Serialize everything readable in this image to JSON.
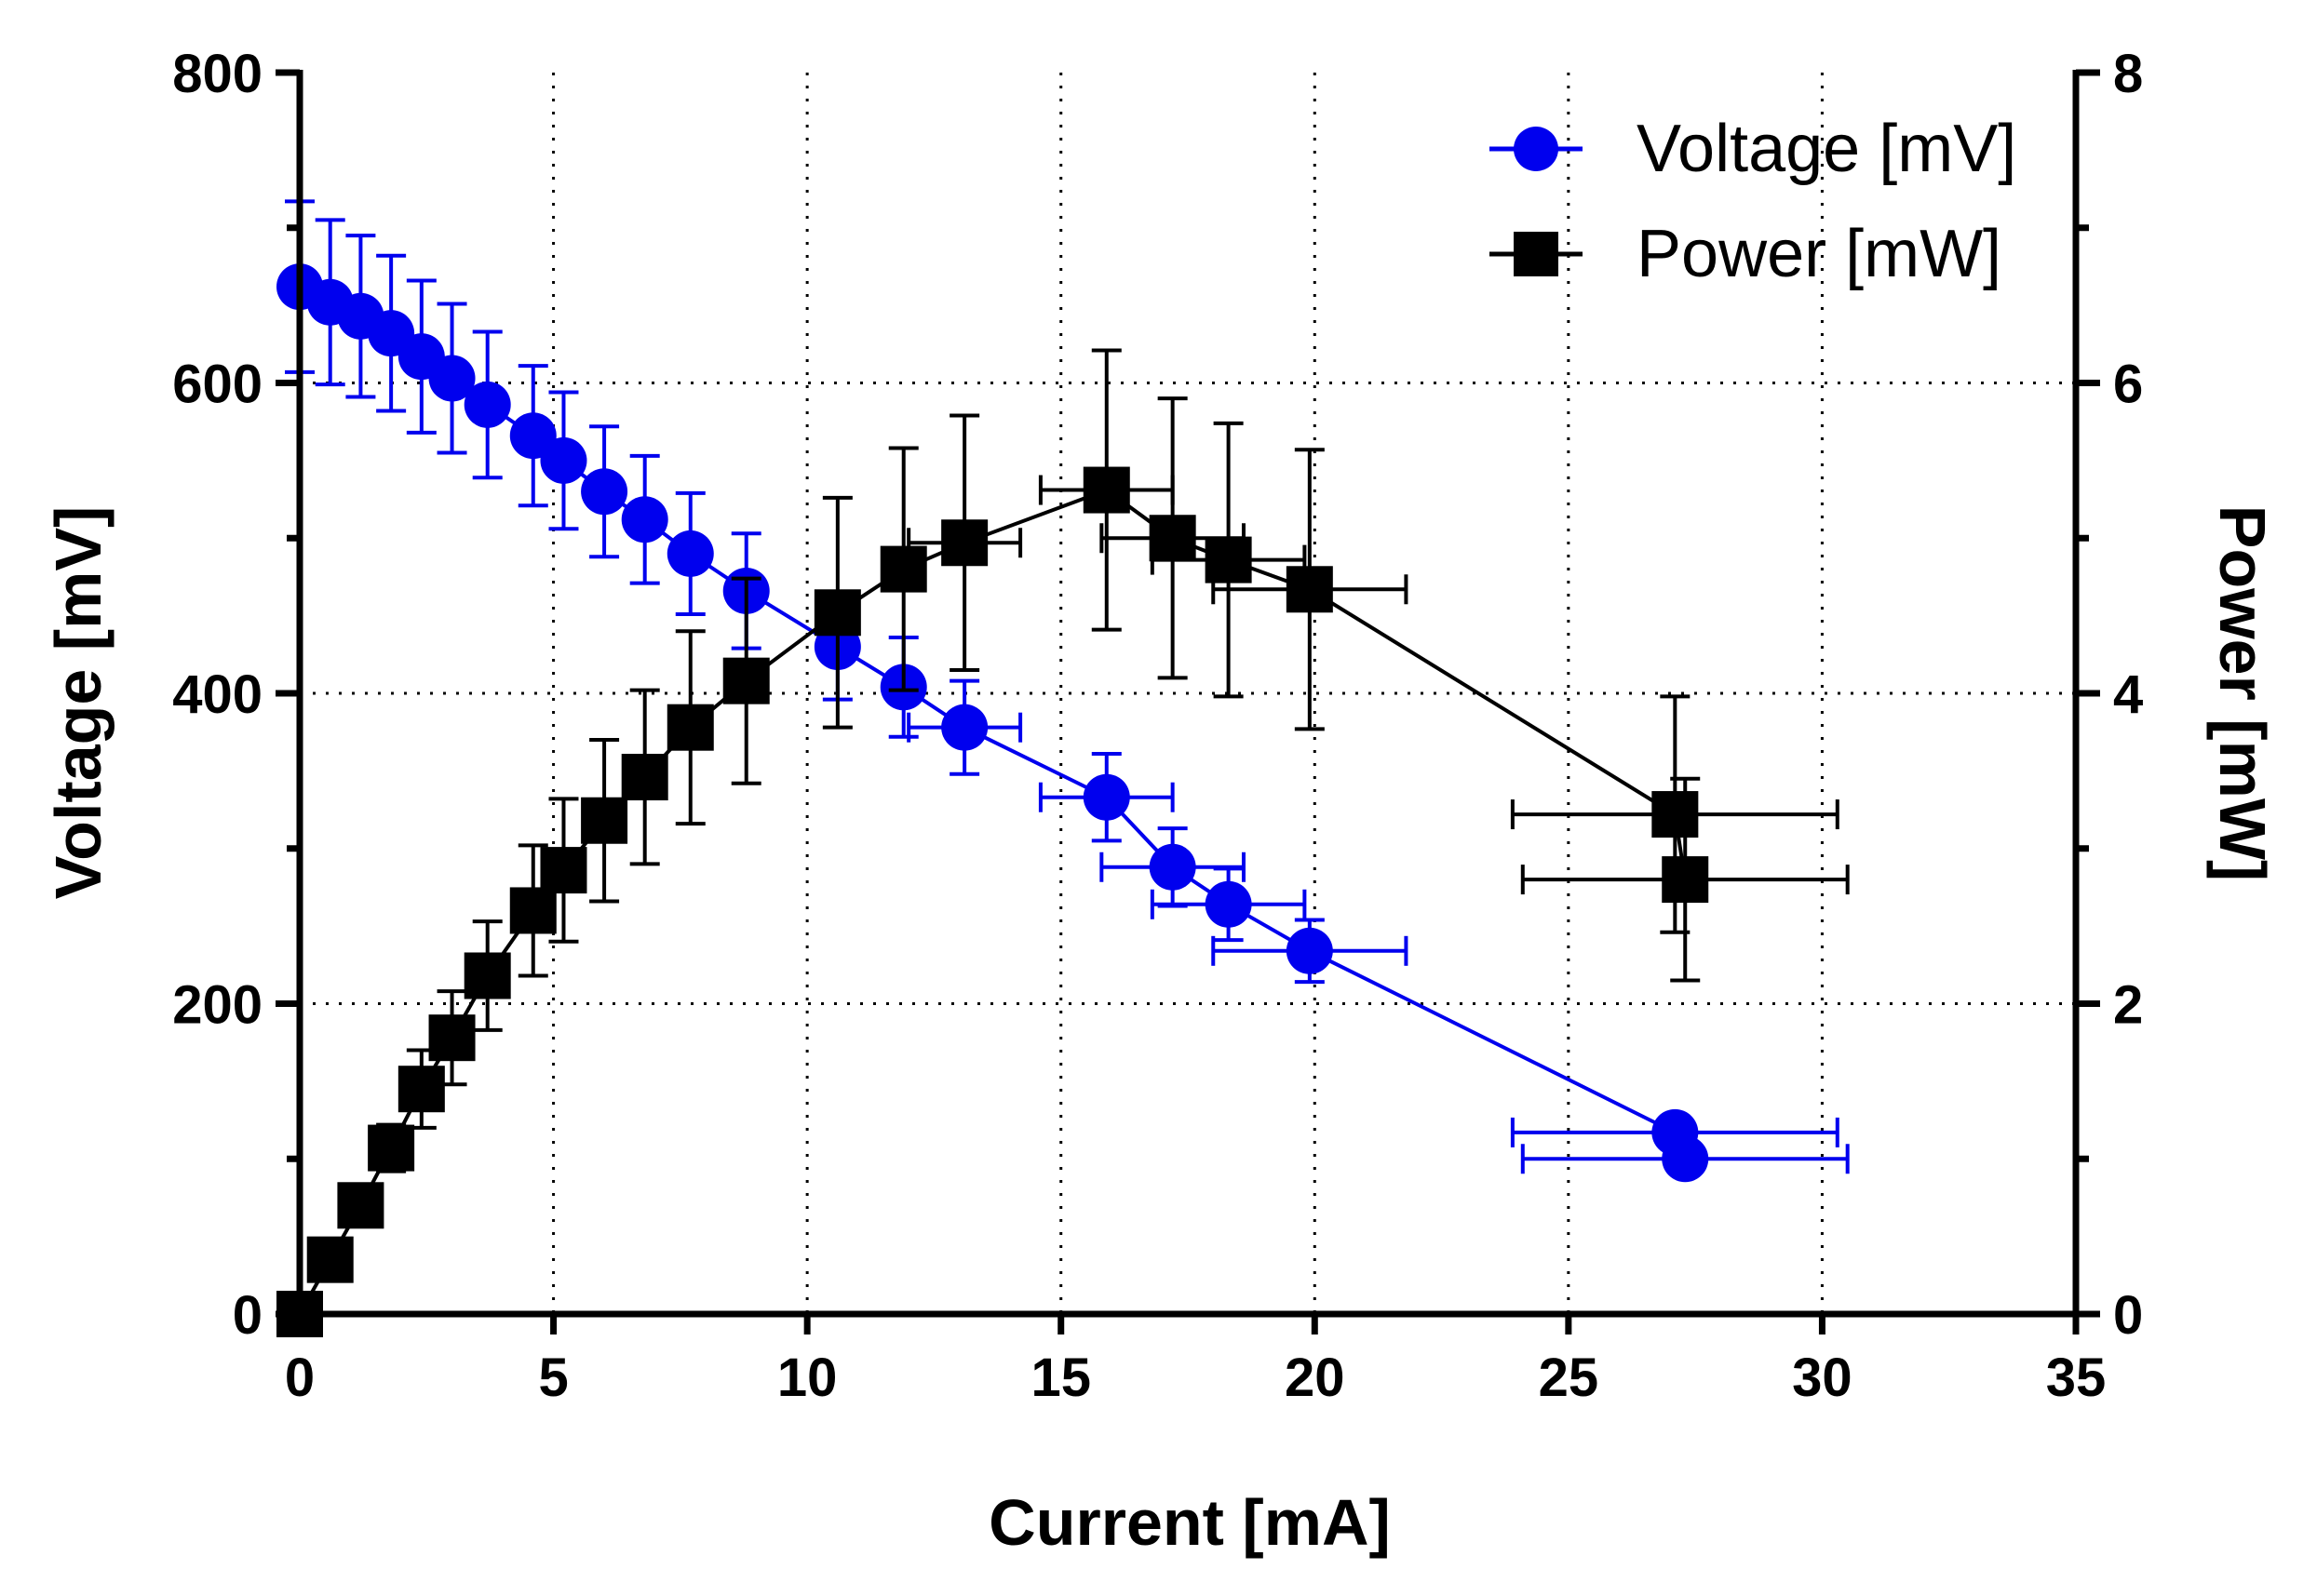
{
  "chart_data": {
    "type": "scatter",
    "title": "",
    "xlabel": "Current [mA]",
    "ylabel": "Voltage [mV]",
    "y2label": "Power [mW]",
    "xlim": [
      0,
      35
    ],
    "ylim": [
      0,
      800
    ],
    "y2lim": [
      0,
      8
    ],
    "x_ticks": [
      0,
      5,
      10,
      15,
      20,
      25,
      30,
      35
    ],
    "y_ticks": [
      0,
      200,
      400,
      600,
      800
    ],
    "y2_ticks": [
      0,
      2,
      4,
      6,
      8
    ],
    "grid": "dotted",
    "legend_position": "top-right",
    "series": [
      {
        "name": "Voltage [mV]",
        "axis": "left",
        "color": "#0000ee",
        "marker": "circle",
        "points": [
          {
            "x": 0.0,
            "y": 662,
            "yerr": 55,
            "xerr": 0
          },
          {
            "x": 0.6,
            "y": 652,
            "yerr": 53,
            "xerr": 0
          },
          {
            "x": 1.2,
            "y": 643,
            "yerr": 52,
            "xerr": 0
          },
          {
            "x": 1.8,
            "y": 632,
            "yerr": 50,
            "xerr": 0
          },
          {
            "x": 2.4,
            "y": 617,
            "yerr": 49,
            "xerr": 0
          },
          {
            "x": 3.0,
            "y": 603,
            "yerr": 48,
            "xerr": 0
          },
          {
            "x": 3.7,
            "y": 586,
            "yerr": 47,
            "xerr": 0
          },
          {
            "x": 4.6,
            "y": 566,
            "yerr": 45,
            "xerr": 0
          },
          {
            "x": 5.2,
            "y": 550,
            "yerr": 44,
            "xerr": 0
          },
          {
            "x": 6.0,
            "y": 530,
            "yerr": 42,
            "xerr": 0
          },
          {
            "x": 6.8,
            "y": 512,
            "yerr": 41,
            "xerr": 0
          },
          {
            "x": 7.7,
            "y": 490,
            "yerr": 39,
            "xerr": 0
          },
          {
            "x": 8.8,
            "y": 466,
            "yerr": 37,
            "xerr": 0
          },
          {
            "x": 10.6,
            "y": 430,
            "yerr": 34,
            "xerr": 0
          },
          {
            "x": 11.9,
            "y": 404,
            "yerr": 32,
            "xerr": 0
          },
          {
            "x": 13.1,
            "y": 378,
            "yerr": 30,
            "xerr": 1.1
          },
          {
            "x": 15.9,
            "y": 333,
            "yerr": 28,
            "xerr": 1.3
          },
          {
            "x": 17.2,
            "y": 288,
            "yerr": 25,
            "xerr": 1.4
          },
          {
            "x": 18.3,
            "y": 264,
            "yerr": 23,
            "xerr": 1.5
          },
          {
            "x": 19.9,
            "y": 234,
            "yerr": 20,
            "xerr": 1.9
          },
          {
            "x": 27.1,
            "y": 117,
            "yerr": 10,
            "xerr": 3.2
          },
          {
            "x": 27.3,
            "y": 100,
            "yerr": 8,
            "xerr": 3.2
          }
        ]
      },
      {
        "name": "Power [mW]",
        "axis": "right",
        "color": "#000000",
        "marker": "square",
        "points": [
          {
            "x": 0.0,
            "y": 0.0,
            "yerr": 0.0,
            "xerr": 0
          },
          {
            "x": 0.6,
            "y": 0.35,
            "yerr": 0.0,
            "xerr": 0
          },
          {
            "x": 1.2,
            "y": 0.7,
            "yerr": 0.0,
            "xerr": 0
          },
          {
            "x": 1.8,
            "y": 1.07,
            "yerr": 0.15,
            "xerr": 0
          },
          {
            "x": 2.4,
            "y": 1.45,
            "yerr": 0.25,
            "xerr": 0
          },
          {
            "x": 3.0,
            "y": 1.78,
            "yerr": 0.3,
            "xerr": 0
          },
          {
            "x": 3.7,
            "y": 2.18,
            "yerr": 0.35,
            "xerr": 0
          },
          {
            "x": 4.6,
            "y": 2.6,
            "yerr": 0.42,
            "xerr": 0
          },
          {
            "x": 5.2,
            "y": 2.86,
            "yerr": 0.46,
            "xerr": 0
          },
          {
            "x": 6.0,
            "y": 3.18,
            "yerr": 0.52,
            "xerr": 0
          },
          {
            "x": 6.8,
            "y": 3.46,
            "yerr": 0.56,
            "xerr": 0
          },
          {
            "x": 7.7,
            "y": 3.78,
            "yerr": 0.62,
            "xerr": 0
          },
          {
            "x": 8.8,
            "y": 4.08,
            "yerr": 0.66,
            "xerr": 0
          },
          {
            "x": 10.6,
            "y": 4.52,
            "yerr": 0.74,
            "xerr": 0
          },
          {
            "x": 11.9,
            "y": 4.8,
            "yerr": 0.78,
            "xerr": 0
          },
          {
            "x": 13.1,
            "y": 4.97,
            "yerr": 0.82,
            "xerr": 1.1
          },
          {
            "x": 15.9,
            "y": 5.31,
            "yerr": 0.9,
            "xerr": 1.3
          },
          {
            "x": 17.2,
            "y": 5.0,
            "yerr": 0.9,
            "xerr": 1.4
          },
          {
            "x": 18.3,
            "y": 4.86,
            "yerr": 0.88,
            "xerr": 1.5
          },
          {
            "x": 19.9,
            "y": 4.67,
            "yerr": 0.9,
            "xerr": 1.9
          },
          {
            "x": 27.1,
            "y": 3.22,
            "yerr": 0.76,
            "xerr": 3.2
          },
          {
            "x": 27.3,
            "y": 2.8,
            "yerr": 0.65,
            "xerr": 3.2
          }
        ]
      }
    ]
  }
}
